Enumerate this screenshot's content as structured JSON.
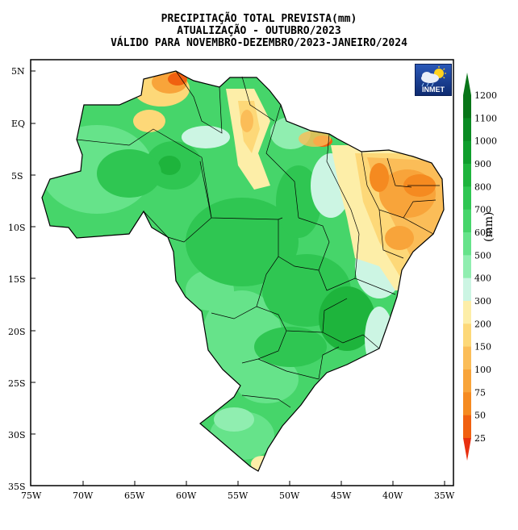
{
  "title": {
    "line1": "PRECIPITAÇÃO TOTAL PREVISTA(mm)",
    "line2": "ATUALIZAÇÃO - OUTUBRO/2023",
    "line3": "VÁLIDO PARA NOVEMBRO-DEZEMBRO/2023-JANEIRO/2024"
  },
  "logo": {
    "text": "INMET",
    "icon": "sun-cloud-rain-icon"
  },
  "colorbar": {
    "unit": "(mm)",
    "levels": [
      "25",
      "50",
      "75",
      "100",
      "150",
      "200",
      "300",
      "400",
      "500",
      "600",
      "700",
      "800",
      "900",
      "1000",
      "1100",
      "1200"
    ],
    "colors": [
      "#e83010",
      "#f06010",
      "#f58a20",
      "#f8a43a",
      "#fbbd58",
      "#fdd878",
      "#fdeea8",
      "#ccf5e3",
      "#90eeb0",
      "#66e38a",
      "#46d56a",
      "#2fc652",
      "#1eb43c",
      "#0f9e2c",
      "#0a8a22",
      "#087518"
    ]
  },
  "axes": {
    "lat_labels": [
      "5N",
      "EQ",
      "5S",
      "10S",
      "15S",
      "20S",
      "25S",
      "30S",
      "35S"
    ],
    "lon_labels": [
      "75W",
      "70W",
      "65W",
      "60W",
      "55W",
      "50W",
      "45W",
      "40W",
      "35W"
    ]
  }
}
